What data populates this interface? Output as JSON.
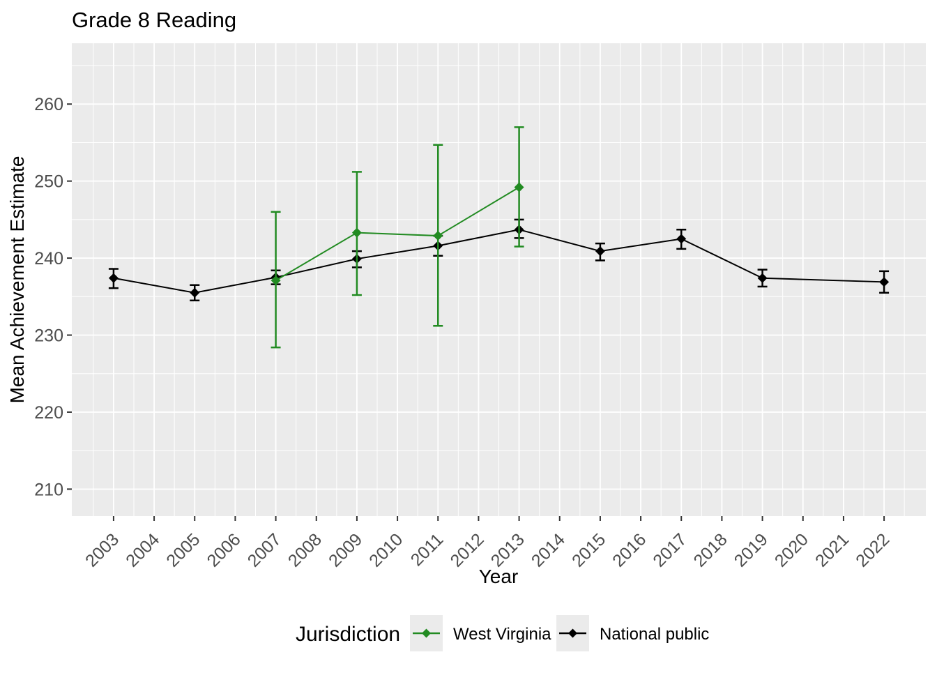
{
  "colors": {
    "panel_background": "#EBEBEB",
    "gridline": "#FFFFFF",
    "tick_text": "#4D4D4D",
    "tick_mark": "#333333",
    "title_text": "#000000",
    "west_virginia": "#228B22",
    "national_public": "#000000",
    "legend_key_background": "#EBEBEB"
  },
  "legend": {
    "title": "Jurisdiction",
    "position": "bottom"
  },
  "chart_data": {
    "type": "line",
    "title": "Grade 8 Reading",
    "xlabel": "Year",
    "ylabel": "Mean Achievement Estimate",
    "grid": true,
    "legend_position": "bottom",
    "legend_title": "Jurisdiction",
    "xlim": [
      2001.97,
      2023.03
    ],
    "ylim": [
      206.5,
      267.9
    ],
    "x_ticks": [
      2003,
      2004,
      2005,
      2006,
      2007,
      2008,
      2009,
      2010,
      2011,
      2012,
      2013,
      2014,
      2015,
      2016,
      2017,
      2018,
      2019,
      2020,
      2021,
      2022
    ],
    "y_ticks": [
      210,
      220,
      230,
      240,
      250,
      260
    ],
    "series": [
      {
        "name": "West Virginia",
        "color": "#228B22",
        "points": [
          {
            "year": 2007,
            "mean": 237.1,
            "ci_low": 228.4,
            "ci_high": 246.0
          },
          {
            "year": 2009,
            "mean": 243.3,
            "ci_low": 235.2,
            "ci_high": 251.2
          },
          {
            "year": 2011,
            "mean": 242.9,
            "ci_low": 231.2,
            "ci_high": 254.7
          },
          {
            "year": 2013,
            "mean": 249.2,
            "ci_low": 241.5,
            "ci_high": 257.0
          }
        ]
      },
      {
        "name": "National public",
        "color": "#000000",
        "points": [
          {
            "year": 2003,
            "mean": 237.4,
            "ci_low": 236.1,
            "ci_high": 238.6
          },
          {
            "year": 2005,
            "mean": 235.5,
            "ci_low": 234.5,
            "ci_high": 236.5
          },
          {
            "year": 2007,
            "mean": 237.5,
            "ci_low": 236.6,
            "ci_high": 238.4
          },
          {
            "year": 2009,
            "mean": 239.9,
            "ci_low": 238.8,
            "ci_high": 240.9
          },
          {
            "year": 2011,
            "mean": 241.6,
            "ci_low": 240.3,
            "ci_high": 242.9
          },
          {
            "year": 2013,
            "mean": 243.7,
            "ci_low": 242.6,
            "ci_high": 245.0
          },
          {
            "year": 2015,
            "mean": 240.9,
            "ci_low": 239.7,
            "ci_high": 241.9
          },
          {
            "year": 2017,
            "mean": 242.5,
            "ci_low": 241.2,
            "ci_high": 243.7
          },
          {
            "year": 2019,
            "mean": 237.4,
            "ci_low": 236.3,
            "ci_high": 238.5
          },
          {
            "year": 2022,
            "mean": 236.9,
            "ci_low": 235.5,
            "ci_high": 238.3
          }
        ]
      }
    ]
  }
}
